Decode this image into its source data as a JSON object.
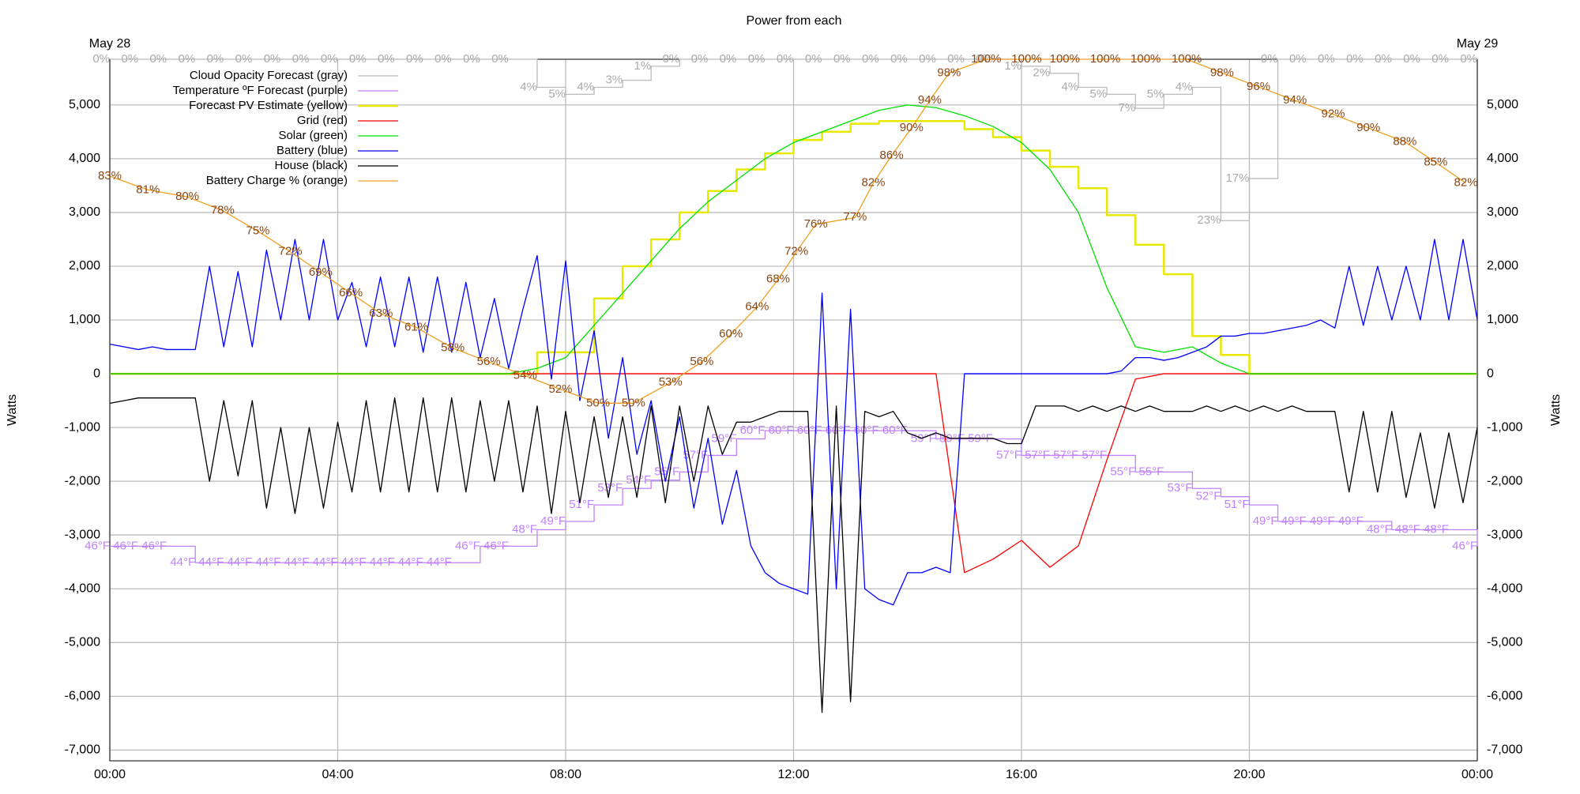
{
  "chart_data": {
    "type": "line",
    "title": "Power from each",
    "ylabel": "Watts",
    "annotations": [
      {
        "text": "May 28",
        "x": 0
      },
      {
        "text": "May 29",
        "x": 24
      }
    ],
    "xlim": [
      0,
      24
    ],
    "xticks": [
      {
        "value": 0,
        "label": "00:00"
      },
      {
        "value": 4,
        "label": "04:00"
      },
      {
        "value": 8,
        "label": "08:00"
      },
      {
        "value": 12,
        "label": "12:00"
      },
      {
        "value": 16,
        "label": "16:00"
      },
      {
        "value": 20,
        "label": "20:00"
      },
      {
        "value": 24,
        "label": "00:00"
      }
    ],
    "ylim": [
      -7200,
      5850
    ],
    "yticks": [
      {
        "value": -7000,
        "label": "-7,000"
      },
      {
        "value": -6000,
        "label": "-6,000"
      },
      {
        "value": -5000,
        "label": "-5,000"
      },
      {
        "value": -4000,
        "label": "-4,000"
      },
      {
        "value": -3000,
        "label": "-3,000"
      },
      {
        "value": -2000,
        "label": "-2,000"
      },
      {
        "value": -1000,
        "label": "-1,000"
      },
      0,
      {
        "value": 1000,
        "label": "1,000"
      },
      {
        "value": 2000,
        "label": "2,000"
      },
      {
        "value": 3000,
        "label": "3,000"
      },
      {
        "value": 4000,
        "label": "4,000"
      },
      {
        "value": 5000,
        "label": "5,000"
      }
    ],
    "y2lim": [
      -2,
      100
    ],
    "y3lim": [
      20,
      105
    ],
    "y4lim": [
      100,
      0
    ],
    "grid": true,
    "legend": "upper left",
    "x": [
      0,
      0.5,
      1,
      1.5,
      2,
      2.5,
      3,
      3.5,
      4,
      4.5,
      5,
      5.5,
      6,
      6.5,
      7,
      7.5,
      8,
      8.5,
      9,
      9.5,
      10,
      10.5,
      11,
      11.5,
      12,
      12.5,
      13,
      13.5,
      14,
      14.5,
      15,
      15.5,
      16,
      16.5,
      17,
      17.5,
      18,
      18.5,
      19,
      19.5,
      20,
      20.5,
      21,
      21.5,
      22,
      22.5,
      23,
      23.5,
      24
    ],
    "series": [
      {
        "name": "Cloud Opacity Forecast (gray)",
        "color": "#bbbbbb",
        "label_color": "#aaaaaa",
        "axis": "y4",
        "style": "step",
        "values": [
          0,
          0,
          0,
          0,
          0,
          0,
          0,
          0,
          0,
          0,
          0,
          0,
          0,
          0,
          0,
          4,
          5,
          4,
          3,
          1,
          0,
          0,
          0,
          0,
          0,
          0,
          0,
          0,
          0,
          0,
          0,
          0,
          1,
          2,
          4,
          5,
          7,
          5,
          4,
          23,
          17,
          0,
          0,
          0,
          0,
          0,
          0,
          0,
          0
        ],
        "value_labels": [
          "0%",
          "0%",
          "0%",
          "0%",
          "0%",
          "0%",
          "0%",
          "0%",
          "0%",
          "0%",
          "0%",
          "0%",
          "0%",
          "0%",
          "0%",
          "4%",
          "5%",
          "4%",
          "3%",
          "1%",
          "0%",
          "0%",
          "0%",
          "0%",
          "0%",
          "0%",
          "0%",
          "0%",
          "0%",
          "0%",
          "0%",
          "0%",
          "1%",
          "2%",
          "4%",
          "5%",
          "7%",
          "5%",
          "4%",
          "23%",
          "17%",
          "0%",
          "0%",
          "0%",
          "0%",
          "0%",
          "0%",
          "0%",
          "0%"
        ]
      },
      {
        "name": "Temperature ºF Forecast (purple)",
        "color": "#c080ff",
        "label_color": "#c080ff",
        "axis": "y3",
        "style": "step",
        "values": [
          46,
          46,
          46,
          44,
          44,
          44,
          44,
          44,
          44,
          44,
          44,
          44,
          44,
          46,
          46,
          48,
          49,
          51,
          53,
          54,
          55,
          57,
          59,
          60,
          60,
          60,
          60,
          60,
          60,
          59,
          59,
          59,
          57,
          57,
          57,
          57,
          55,
          55,
          53,
          52,
          51,
          49,
          49,
          49,
          49,
          48,
          48,
          48,
          46
        ],
        "value_labels": [
          "46°F",
          "46°F",
          "46°F",
          "44°F",
          "44°F",
          "44°F",
          "44°F",
          "44°F",
          "44°F",
          "44°F",
          "44°F",
          "44°F",
          "44°F",
          "46°F",
          "46°F",
          "48°F",
          "49°F",
          "51°F",
          "53°F",
          "54°F",
          "55°F",
          "57°F",
          "59°F",
          "60°F",
          "60°F",
          "60°F",
          "60°F",
          "60°F",
          "60°F",
          "59°F",
          "59°F",
          "59°F",
          "57°F",
          "57°F",
          "57°F",
          "57°F",
          "55°F",
          "55°F",
          "53°F",
          "52°F",
          "51°F",
          "49°F",
          "49°F",
          "49°F",
          "49°F",
          "48°F",
          "48°F",
          "48°F",
          "46°F"
        ]
      },
      {
        "name": "Forecast PV Estimate (yellow)",
        "color": "#e8e800",
        "axis": "y",
        "style": "step",
        "width": 2.5,
        "values": [
          0,
          0,
          0,
          0,
          0,
          0,
          0,
          0,
          0,
          0,
          0,
          0,
          0,
          0,
          0,
          400,
          400,
          1400,
          2000,
          2500,
          3000,
          3400,
          3800,
          4100,
          4350,
          4500,
          4650,
          4700,
          4700,
          4700,
          4550,
          4400,
          4150,
          3850,
          3450,
          2950,
          2400,
          1850,
          700,
          350,
          0,
          0,
          0,
          0,
          0,
          0,
          0,
          0,
          0
        ]
      },
      {
        "name": "Grid (red)",
        "color": "#ff0000",
        "axis": "y",
        "values": [
          0,
          0,
          0,
          0,
          0,
          0,
          0,
          0,
          0,
          0,
          0,
          0,
          0,
          0,
          0,
          0,
          0,
          0,
          0,
          0,
          0,
          0,
          0,
          0,
          0,
          0,
          0,
          0,
          0,
          0,
          -3700,
          -3450,
          -3100,
          -3600,
          -3200,
          -1600,
          -100,
          0,
          0,
          0,
          0,
          0,
          0,
          0,
          0,
          0,
          0,
          0,
          0
        ]
      },
      {
        "name": "Solar (green)",
        "color": "#00e000",
        "axis": "y",
        "values": [
          0,
          0,
          0,
          0,
          0,
          0,
          0,
          0,
          0,
          0,
          0,
          0,
          0,
          0,
          0,
          100,
          300,
          900,
          1500,
          2100,
          2700,
          3200,
          3600,
          4000,
          4300,
          4500,
          4700,
          4900,
          5000,
          4950,
          4800,
          4600,
          4300,
          3800,
          3000,
          1600,
          500,
          400,
          500,
          200,
          0,
          0,
          0,
          0,
          0,
          0,
          0,
          0,
          0
        ]
      },
      {
        "name": "Battery (blue)",
        "color": "#0000ff",
        "axis": "y",
        "x": [
          0,
          0.25,
          0.5,
          0.75,
          1,
          1.25,
          1.5,
          1.75,
          2,
          2.25,
          2.5,
          2.75,
          3,
          3.25,
          3.5,
          3.75,
          4,
          4.25,
          4.5,
          4.75,
          5,
          5.25,
          5.5,
          5.75,
          6,
          6.25,
          6.5,
          6.75,
          7,
          7.25,
          7.5,
          7.75,
          8,
          8.25,
          8.5,
          8.75,
          9,
          9.25,
          9.5,
          9.75,
          10,
          10.25,
          10.5,
          10.75,
          11,
          11.25,
          11.5,
          11.75,
          12,
          12.25,
          12.5,
          12.75,
          13,
          13.25,
          13.5,
          13.75,
          14,
          14.25,
          14.5,
          14.75,
          15,
          15.25,
          15.5,
          15.75,
          16,
          16.25,
          16.5,
          16.75,
          17,
          17.25,
          17.5,
          17.75,
          18,
          18.25,
          18.5,
          18.75,
          19,
          19.25,
          19.5,
          19.75,
          20,
          20.25,
          20.5,
          20.75,
          21,
          21.25,
          21.5,
          21.75,
          22,
          22.25,
          22.5,
          22.75,
          23,
          23.25,
          23.5,
          23.75,
          24
        ],
        "values": [
          550,
          500,
          450,
          500,
          450,
          450,
          450,
          2000,
          500,
          1900,
          500,
          2300,
          1000,
          2500,
          1000,
          2500,
          1000,
          1700,
          500,
          1800,
          500,
          1800,
          400,
          1800,
          400,
          1700,
          300,
          1400,
          100,
          1200,
          2200,
          -100,
          2100,
          -500,
          800,
          -1200,
          300,
          -1500,
          -500,
          -2000,
          -800,
          -2500,
          -1200,
          -2800,
          -1800,
          -3200,
          -3700,
          -3900,
          -4000,
          -4100,
          1500,
          -4000,
          1200,
          -4000,
          -4200,
          -4300,
          -3700,
          -3700,
          -3600,
          -3700,
          0,
          0,
          0,
          0,
          0,
          0,
          0,
          0,
          0,
          0,
          0,
          50,
          300,
          300,
          250,
          300,
          400,
          500,
          700,
          700,
          750,
          750,
          800,
          850,
          900,
          1000,
          850,
          2000,
          900,
          2000,
          1000,
          2000,
          1000,
          2500,
          1000,
          2500,
          1000
        ]
      },
      {
        "name": "House (black)",
        "color": "#000000",
        "axis": "y",
        "x": [
          0,
          0.25,
          0.5,
          0.75,
          1,
          1.25,
          1.5,
          1.75,
          2,
          2.25,
          2.5,
          2.75,
          3,
          3.25,
          3.5,
          3.75,
          4,
          4.25,
          4.5,
          4.75,
          5,
          5.25,
          5.5,
          5.75,
          6,
          6.25,
          6.5,
          6.75,
          7,
          7.25,
          7.5,
          7.75,
          8,
          8.25,
          8.5,
          8.75,
          9,
          9.25,
          9.5,
          9.75,
          10,
          10.25,
          10.5,
          10.75,
          11,
          11.25,
          11.5,
          11.75,
          12,
          12.25,
          12.5,
          12.75,
          13,
          13.25,
          13.5,
          13.75,
          14,
          14.25,
          14.5,
          14.75,
          15,
          15.25,
          15.5,
          15.75,
          16,
          16.25,
          16.5,
          16.75,
          17,
          17.25,
          17.5,
          17.75,
          18,
          18.25,
          18.5,
          18.75,
          19,
          19.25,
          19.5,
          19.75,
          20,
          20.25,
          20.5,
          20.75,
          21,
          21.25,
          21.5,
          21.75,
          22,
          22.25,
          22.5,
          22.75,
          23,
          23.25,
          23.5,
          23.75,
          24
        ],
        "values": [
          -550,
          -500,
          -450,
          -450,
          -450,
          -450,
          -450,
          -2000,
          -500,
          -1900,
          -500,
          -2500,
          -1000,
          -2600,
          -1000,
          -2500,
          -900,
          -2200,
          -500,
          -2200,
          -450,
          -2200,
          -450,
          -2200,
          -450,
          -2200,
          -500,
          -2000,
          -500,
          -2200,
          -600,
          -2600,
          -700,
          -2400,
          -800,
          -2300,
          -800,
          -2300,
          -600,
          -2400,
          -600,
          -2000,
          -600,
          -1500,
          -900,
          -900,
          -800,
          -700,
          -700,
          -700,
          -6300,
          -600,
          -6100,
          -700,
          -800,
          -700,
          -1100,
          -1200,
          -1100,
          -1200,
          -1200,
          -1200,
          -1200,
          -1300,
          -1300,
          -600,
          -600,
          -600,
          -700,
          -600,
          -700,
          -600,
          -700,
          -600,
          -700,
          -700,
          -700,
          -600,
          -700,
          -600,
          -700,
          -600,
          -700,
          -600,
          -700,
          -700,
          -700,
          -2200,
          -700,
          -2200,
          -700,
          -2300,
          -1100,
          -2500,
          -1100,
          -2400,
          -1000
        ]
      },
      {
        "name": "Battery Charge % (orange)",
        "color": "#f0a020",
        "label_color": "#8b4513",
        "axis": "y2",
        "x": [
          0,
          0.67,
          1.36,
          1.98,
          2.6,
          3.17,
          3.7,
          4.23,
          4.76,
          5.38,
          6.02,
          6.65,
          7.29,
          7.91,
          8.57,
          9.19,
          9.84,
          10.39,
          10.9,
          11.36,
          11.73,
          12.05,
          12.39,
          13.08,
          13.4,
          13.72,
          14.07,
          14.39,
          14.73,
          15.38,
          16.09,
          16.76,
          17.47,
          18.18,
          18.9,
          19.52,
          20.16,
          20.8,
          21.47,
          22.09,
          22.73,
          23.27,
          23.8
        ],
        "values": [
          83,
          81,
          80,
          78,
          75,
          72,
          69,
          66,
          63,
          61,
          58,
          56,
          54,
          52,
          50,
          50,
          53,
          56,
          60,
          64,
          68,
          72,
          76,
          77,
          82,
          86,
          90,
          94,
          98,
          100,
          100,
          100,
          100,
          100,
          100,
          98,
          96,
          94,
          92,
          90,
          88,
          85,
          82
        ],
        "value_labels": [
          "83%",
          "81%",
          "80%",
          "78%",
          "75%",
          "72%",
          "69%",
          "66%",
          "63%",
          "61%",
          "58%",
          "56%",
          "54%",
          "52%",
          "50%",
          "50%",
          "53%",
          "56%",
          "60%",
          "64%",
          "68%",
          "72%",
          "76%",
          "77%",
          "82%",
          "86%",
          "90%",
          "94%",
          "98%",
          "100%",
          "100%",
          "100%",
          "100%",
          "100%",
          "100%",
          "98%",
          "96%",
          "94%",
          "92%",
          "90%",
          "88%",
          "85%",
          "82%"
        ]
      }
    ]
  }
}
